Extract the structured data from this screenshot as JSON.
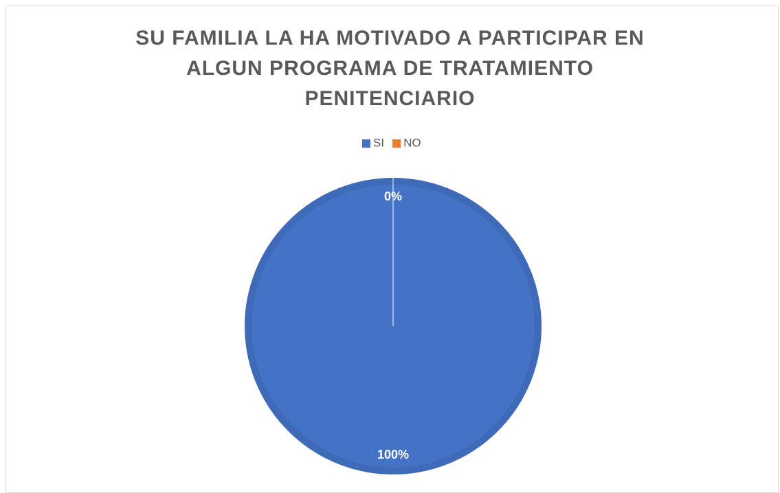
{
  "chart_data": {
    "type": "pie",
    "title": "SU FAMILIA LA HA MOTIVADO A PARTICIPAR EN ALGUN PROGRAMA DE TRATAMIENTO PENITENCIARIO",
    "categories": [
      "SI",
      "NO"
    ],
    "values": [
      100,
      0
    ],
    "value_labels": [
      "100%",
      "0%"
    ],
    "colors": [
      "#4472c4",
      "#ed7d31"
    ],
    "legend": "top"
  }
}
